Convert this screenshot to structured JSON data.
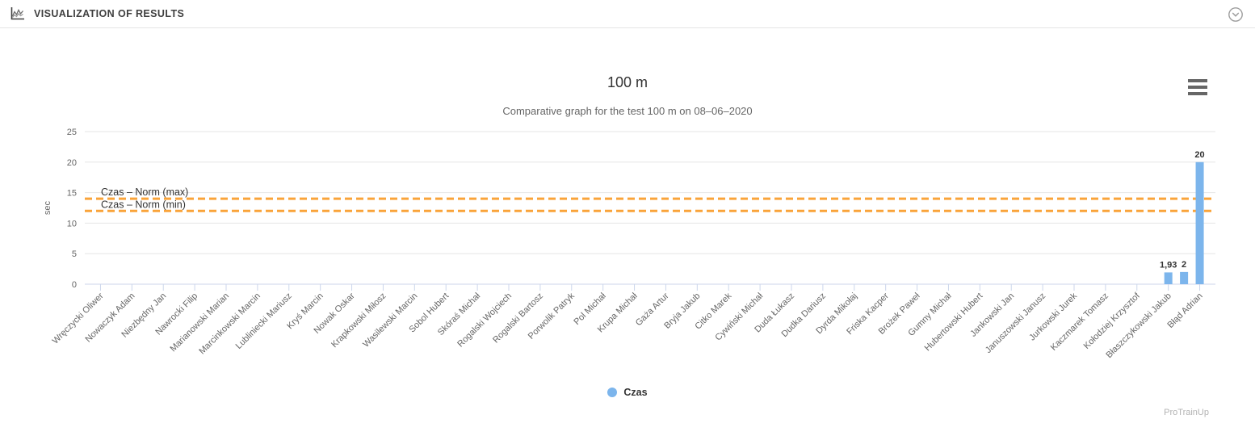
{
  "header": {
    "title": "VISUALIZATION OF RESULTS",
    "icon": "bar-chart-icon",
    "collapse_icon": "chevron-down-circle-icon"
  },
  "chart": {
    "title": "100 m",
    "subtitle": "Comparative graph for the test 100 m on 08–06–2020",
    "context_menu_icon": "hamburger-menu-icon"
  },
  "legend": [
    {
      "label": "Czas",
      "color": "#7cb5ec"
    }
  ],
  "watermark": "ProTrainUp",
  "chart_data": {
    "type": "bar",
    "title": "100 m",
    "subtitle": "Comparative graph for the test 100 m on 08–06–2020",
    "xlabel": "",
    "ylabel": "sec",
    "ylim": [
      0,
      25
    ],
    "yticks": [
      0,
      5,
      10,
      15,
      20,
      25
    ],
    "grid": true,
    "legend_position": "bottom-center",
    "categories": [
      "Wręczycki Oliwer",
      "Nowaczyk Adam",
      "Niezbędny Jan",
      "Nawrocki Filip",
      "Marianowski Marian",
      "Marcinkowski Marcin",
      "Lubliniecki Mariusz",
      "Kryś Marcin",
      "Nowak Oskar",
      "Krapkowski Miłosz",
      "Wasilewski Marcin",
      "Sobol Hubert",
      "Skóraś Michał",
      "Rogalski Wojciech",
      "Rogalski Bartosz",
      "Porwolik Patryk",
      "Pol Michał",
      "Krupa Michał",
      "Gaża Artur",
      "Bryja Jakub",
      "Citko Marek",
      "Cywiński Michał",
      "Duda Łukasz",
      "Dudka Dariusz",
      "Dyrda Mikołaj",
      "Friska Kacper",
      "Brożek Paweł",
      "Gumny Michał",
      "Hubertowski Hubert",
      "Jankowski Jan",
      "Januszowski Janusz",
      "Jurkowski Jurek",
      "Kaczmarek Tomasz",
      "Kołodziej Krzysztof",
      "Błaszczykowski Jakub",
      "Błąd Adrian"
    ],
    "series": [
      {
        "name": "Czas",
        "color": "#7cb5ec"
      }
    ],
    "bars": [
      {
        "category_index": 34,
        "category": "Błaszczykowski Jakub",
        "value": 1.93,
        "label": "1,93",
        "slot_offset": 0
      },
      {
        "category_index": 34,
        "category": "Błaszczykowski Jakub",
        "value": 2,
        "label": "2",
        "slot_offset": 0.5
      },
      {
        "category_index": 35,
        "category": "Błąd Adrian",
        "value": 20,
        "label": "20",
        "slot_offset": 0
      }
    ],
    "norm_lines": [
      {
        "label": "Czas – Norm (max)",
        "value": 14,
        "color": "#faa43a",
        "style": "dashed"
      },
      {
        "label": "Czas – Norm (min)",
        "value": 12,
        "color": "#faa43a",
        "style": "dashed"
      }
    ],
    "colors": {
      "bar": "#7cb5ec",
      "grid": "#e6e6e6",
      "axis": "#ccd6eb",
      "tick_label": "#666666",
      "data_label": "#333333"
    }
  }
}
